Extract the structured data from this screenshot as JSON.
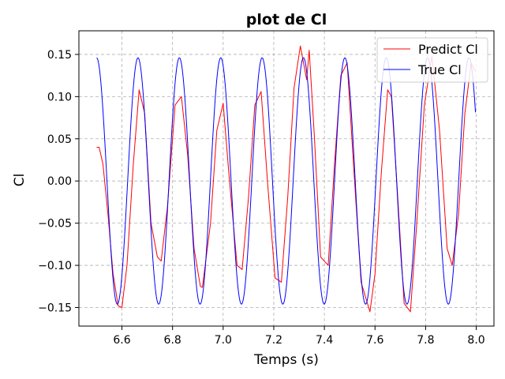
{
  "chart_data": {
    "type": "line",
    "title": "plot de Cl",
    "xlabel": "Temps (s)",
    "ylabel": "Cl",
    "xlim": [
      6.43,
      8.07
    ],
    "ylim": [
      -0.172,
      0.178
    ],
    "xticks": [
      6.6,
      6.8,
      7.0,
      7.2,
      7.4,
      7.6,
      7.8,
      8.0
    ],
    "yticks": [
      -0.15,
      -0.1,
      -0.05,
      0.0,
      0.05,
      0.1,
      0.15
    ],
    "xtick_labels": [
      "6.6",
      "6.8",
      "7.0",
      "7.2",
      "7.4",
      "7.6",
      "7.8",
      "8.0"
    ],
    "ytick_labels": [
      "−0.15",
      "−0.10",
      "−0.05",
      "0.00",
      "0.05",
      "0.10",
      "0.15"
    ],
    "grid": true,
    "legend_position": "top-right",
    "series": [
      {
        "name": "Predict Cl",
        "color": "#ff0000",
        "x": [
          6.5,
          6.51,
          6.525,
          6.545,
          6.565,
          6.585,
          6.6,
          6.62,
          6.645,
          6.668,
          6.69,
          6.715,
          6.74,
          6.755,
          6.78,
          6.81,
          6.835,
          6.86,
          6.885,
          6.91,
          6.918,
          6.95,
          6.975,
          7.0,
          7.025,
          7.055,
          7.075,
          7.1,
          7.125,
          7.15,
          7.175,
          7.205,
          7.23,
          7.255,
          7.28,
          7.305,
          7.33,
          7.34,
          7.36,
          7.385,
          7.415,
          7.44,
          7.465,
          7.49,
          7.515,
          7.545,
          7.58,
          7.6,
          7.625,
          7.65,
          7.665,
          7.69,
          7.715,
          7.74,
          7.765,
          7.795,
          7.825,
          7.855,
          7.885,
          7.905,
          7.93,
          7.955,
          7.98,
          7.997
        ],
        "values": [
          0.04,
          0.04,
          0.02,
          -0.04,
          -0.11,
          -0.148,
          -0.15,
          -0.1,
          0.02,
          0.108,
          0.08,
          -0.05,
          -0.09,
          -0.095,
          -0.03,
          0.09,
          0.1,
          0.03,
          -0.08,
          -0.125,
          -0.126,
          -0.05,
          0.06,
          0.092,
          0.0,
          -0.1,
          -0.105,
          -0.02,
          0.09,
          0.106,
          0.0,
          -0.115,
          -0.12,
          -0.02,
          0.11,
          0.16,
          0.12,
          0.155,
          0.055,
          -0.09,
          -0.1,
          0.02,
          0.125,
          0.14,
          0.02,
          -0.12,
          -0.155,
          -0.11,
          0.01,
          0.108,
          0.1,
          -0.02,
          -0.145,
          -0.155,
          -0.05,
          0.09,
          0.148,
          0.06,
          -0.08,
          -0.1,
          -0.04,
          0.08,
          0.14,
          0.13
        ]
      },
      {
        "name": "True Cl",
        "color": "#0000ff",
        "amplitude": 0.146,
        "period": 0.1635,
        "phase_peak_x": 6.5,
        "x_start": 6.5,
        "x_end": 7.997
      }
    ]
  }
}
